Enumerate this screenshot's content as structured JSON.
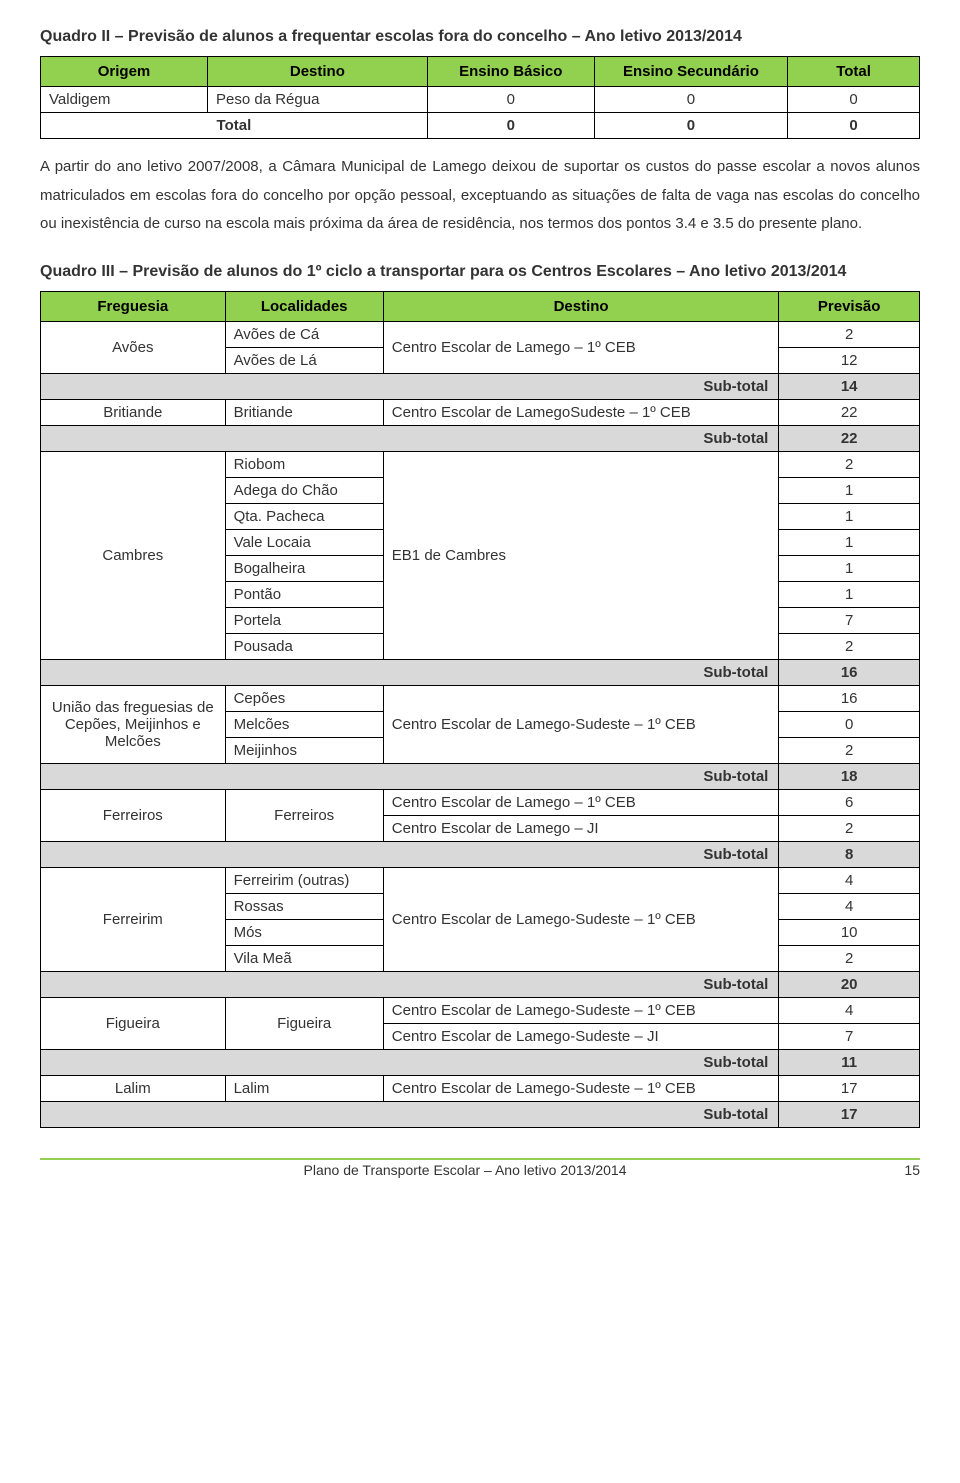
{
  "quadro2": {
    "title": "Quadro II – Previsão de alunos a frequentar escolas fora do concelho – Ano letivo 2013/2014",
    "headers": [
      "Origem",
      "Destino",
      "Ensino Básico",
      "Ensino Secundário",
      "Total"
    ],
    "rows": [
      {
        "origem": "Valdigem",
        "destino": "Peso da Régua",
        "eb": "0",
        "es": "0",
        "tot": "0"
      }
    ],
    "totalRow": {
      "label": "Total",
      "eb": "0",
      "es": "0",
      "tot": "0"
    }
  },
  "paragraph": "A partir do ano letivo 2007/2008, a Câmara Municipal de Lamego deixou de suportar os custos do passe escolar a novos alunos matriculados em escolas fora do concelho por opção pessoal, exceptuando as situações de falta de vaga nas escolas do concelho ou inexistência de curso na escola mais próxima da área de residência, nos termos dos pontos 3.4 e 3.5 do presente plano.",
  "quadro3": {
    "title": "Quadro III – Previsão de alunos do 1º ciclo a transportar para os Centros Escolares – Ano letivo 2013/2014",
    "headers": [
      "Freguesia",
      "Localidades",
      "Destino",
      "Previsão"
    ],
    "groups": [
      {
        "freguesia": "Avões",
        "rows": [
          {
            "loc": "Avões de Cá",
            "dest": "Centro Escolar de Lamego – 1º CEB",
            "prev": "2",
            "destRowspan": 2
          },
          {
            "loc": "Avões de Lá",
            "prev": "12"
          }
        ],
        "subtotal": "14"
      },
      {
        "freguesia": "Britiande",
        "rows": [
          {
            "loc": "Britiande",
            "dest": "Centro Escolar de LamegoSudeste – 1º CEB",
            "prev": "22",
            "destRowspan": 1
          }
        ],
        "subtotal": "22"
      },
      {
        "freguesia": "Cambres",
        "rows": [
          {
            "loc": "Riobom",
            "dest": "EB1 de Cambres",
            "prev": "2",
            "destRowspan": 8
          },
          {
            "loc": "Adega do Chão",
            "prev": "1"
          },
          {
            "loc": "Qta. Pacheca",
            "prev": "1"
          },
          {
            "loc": "Vale Locaia",
            "prev": "1"
          },
          {
            "loc": "Bogalheira",
            "prev": "1"
          },
          {
            "loc": "Pontão",
            "prev": "1"
          },
          {
            "loc": "Portela",
            "prev": "7"
          },
          {
            "loc": "Pousada",
            "prev": "2"
          }
        ],
        "subtotal": "16"
      },
      {
        "freguesia": "União das freguesias de Cepões, Meijinhos e Melcões",
        "rows": [
          {
            "loc": "Cepões",
            "dest": "Centro Escolar de Lamego-Sudeste – 1º CEB",
            "prev": "16",
            "destRowspan": 3
          },
          {
            "loc": "Melcões",
            "prev": "0"
          },
          {
            "loc": "Meijinhos",
            "prev": "2"
          }
        ],
        "subtotal": "18"
      },
      {
        "freguesia": "Ferreiros",
        "rows": [
          {
            "loc": "Ferreiros",
            "locRowspan": 2,
            "dest": "Centro Escolar de Lamego – 1º CEB",
            "prev": "6",
            "destRowspan": 1
          },
          {
            "dest": "Centro Escolar de Lamego – JI",
            "prev": "2",
            "destRowspan": 1
          }
        ],
        "subtotal": "8"
      },
      {
        "freguesia": "Ferreirim",
        "rows": [
          {
            "loc": "Ferreirim (outras)",
            "dest": "Centro Escolar de Lamego-Sudeste – 1º CEB",
            "prev": "4",
            "destRowspan": 4
          },
          {
            "loc": "Rossas",
            "prev": "4"
          },
          {
            "loc": "Mós",
            "prev": "10"
          },
          {
            "loc": "Vila Meã",
            "prev": "2"
          }
        ],
        "subtotal": "20"
      },
      {
        "freguesia": "Figueira",
        "rows": [
          {
            "loc": "Figueira",
            "locRowspan": 2,
            "dest": "Centro Escolar de Lamego-Sudeste – 1º CEB",
            "prev": "4",
            "destRowspan": 1
          },
          {
            "dest": "Centro Escolar de Lamego-Sudeste – JI",
            "prev": "7",
            "destRowspan": 1
          }
        ],
        "subtotal": "11"
      },
      {
        "freguesia": "Lalim",
        "rows": [
          {
            "loc": "Lalim",
            "dest": "Centro Escolar de Lamego-Sudeste – 1º CEB",
            "prev": "17",
            "destRowspan": 1
          }
        ],
        "subtotal": "17"
      }
    ],
    "subtotalLabel": "Sub-total"
  },
  "footer": {
    "text": "Plano de Transporte Escolar – Ano letivo 2013/2014",
    "page": "15"
  },
  "colors": {
    "headerGreen": "#92d050",
    "subtotalGray": "#d9d9d9",
    "footerLine": "#92d050"
  }
}
